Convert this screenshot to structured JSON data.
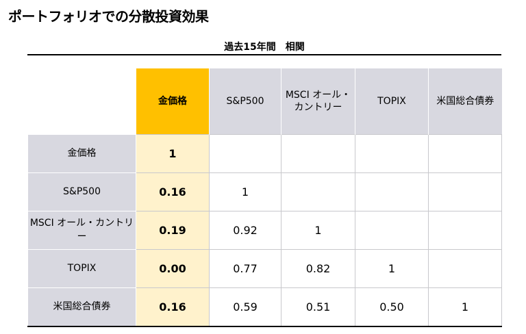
{
  "header": {
    "title": "ポートフォリオでの分散投資効果",
    "subtitle": "過去15年間　相関"
  },
  "table": {
    "columns": [
      "金価格",
      "S&P500",
      "MSCI オール・カントリー",
      "TOPIX",
      "米国総合債券"
    ],
    "rows": [
      {
        "label": "金価格",
        "values": [
          "1"
        ]
      },
      {
        "label": "S&P500",
        "values": [
          "0.16",
          "1"
        ]
      },
      {
        "label": "MSCI オール・カントリー",
        "values": [
          "0.19",
          "0.92",
          "1"
        ]
      },
      {
        "label": "TOPIX",
        "values": [
          "0.00",
          "0.77",
          "0.82",
          "1"
        ]
      },
      {
        "label": "米国総合債券",
        "values": [
          "0.16",
          "0.59",
          "0.51",
          "0.50",
          "1"
        ]
      }
    ]
  }
}
